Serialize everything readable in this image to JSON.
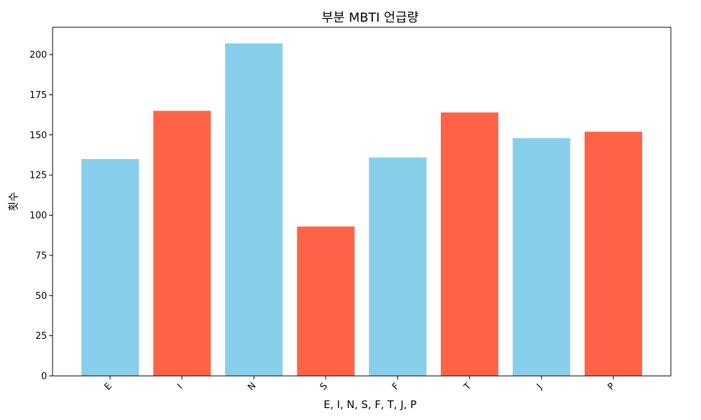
{
  "chart_data": {
    "type": "bar",
    "title": "부분 MBTI 언급량",
    "xlabel": "E, I, N, S, F, T, J, P",
    "ylabel": "횟수",
    "categories": [
      "E",
      "I",
      "N",
      "S",
      "F",
      "T",
      "J",
      "P"
    ],
    "values": [
      135,
      165,
      207,
      93,
      136,
      164,
      148,
      152
    ],
    "bar_colors": [
      "#87CEEB",
      "#FF6347",
      "#87CEEB",
      "#FF6347",
      "#87CEEB",
      "#FF6347",
      "#87CEEB",
      "#FF6347"
    ],
    "ylim": [
      0,
      217
    ],
    "yticks": [
      0,
      25,
      50,
      75,
      100,
      125,
      150,
      175,
      200
    ],
    "grid": false,
    "legend": "none"
  }
}
